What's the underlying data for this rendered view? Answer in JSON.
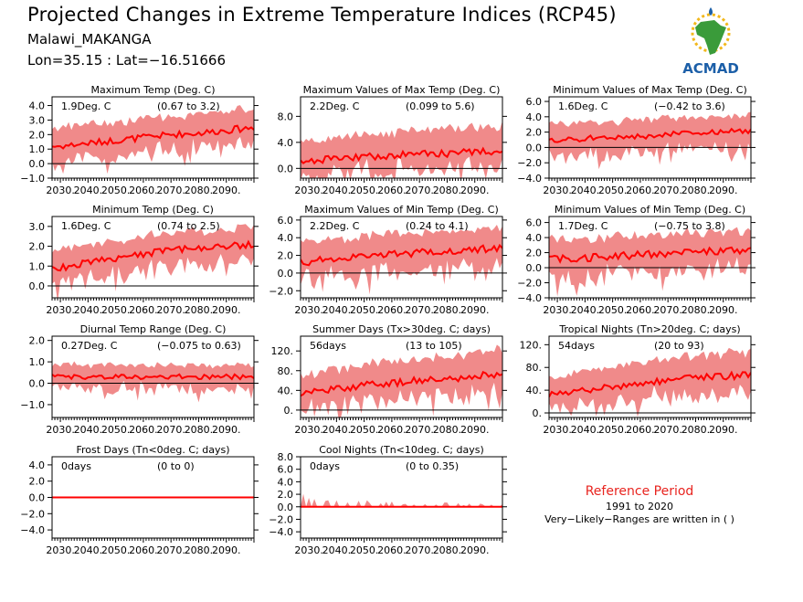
{
  "header": {
    "title": "Projected Changes in Extreme Temperature Indices (RCP45)",
    "station": "Malawi_MAKANGA",
    "coords": "Lon=35.15 : Lat=−16.51666"
  },
  "logo": {
    "text": "ACMAD"
  },
  "reference": {
    "title": "Reference Period",
    "years": "1991 to 2020",
    "note": "Very−Likely−Ranges are written in ( )"
  },
  "colors": {
    "band": "#f08a8a",
    "line": "#ff0000",
    "zero": "#000000",
    "logo_text": "#1c5fa8",
    "logo_africa": "#3a9b3a",
    "logo_sun": "#f2b81c"
  },
  "chart_data": [
    {
      "type": "area",
      "title": "Maximum Temp (Deg. C)",
      "annotation": "1.9Deg. C",
      "range": "(0.67 to 3.2)",
      "x": [
        2030,
        2040,
        2050,
        2060,
        2070,
        2080,
        2090,
        2100
      ],
      "xtick_labels": [
        "2030.",
        "2040.",
        "2050.",
        "2060.",
        "2070.",
        "2080.",
        "2090."
      ],
      "ylim": [
        -1,
        4.6
      ],
      "yticks": [
        -1,
        0,
        1,
        2,
        3,
        4
      ],
      "ytick_labels": [
        "−1.0",
        "0.0",
        "1.0",
        "2.0",
        "3.0",
        "4.0"
      ],
      "series": [
        {
          "values": [
            1.2,
            1.4,
            1.6,
            1.8,
            2.0,
            2.1,
            2.3,
            2.5
          ]
        }
      ],
      "band": {
        "lower": [
          0.2,
          0.4,
          0.6,
          0.8,
          1.0,
          1.1,
          1.3,
          1.4
        ],
        "upper": [
          2.4,
          2.6,
          2.8,
          3.0,
          3.2,
          3.3,
          3.5,
          3.7
        ]
      }
    },
    {
      "type": "area",
      "title": "Maximum Values of Max Temp (Deg. C)",
      "annotation": "2.2Deg. C",
      "range": "(0.099 to 5.6)",
      "x": [
        2030,
        2040,
        2050,
        2060,
        2070,
        2080,
        2090,
        2100
      ],
      "xtick_labels": [
        "2030.",
        "2040.",
        "2050.",
        "2060.",
        "2070.",
        "2080.",
        "2090."
      ],
      "ylim": [
        -1.5,
        11
      ],
      "yticks": [
        0,
        4,
        8
      ],
      "ytick_labels": [
        "0.0",
        "4.0",
        "8.0"
      ],
      "series": [
        {
          "values": [
            1.2,
            1.5,
            1.8,
            2.0,
            2.2,
            2.3,
            2.5,
            2.6
          ]
        }
      ],
      "band": {
        "lower": [
          -0.8,
          -0.5,
          -0.2,
          0.0,
          0.2,
          0.3,
          0.5,
          0.6
        ],
        "upper": [
          4.0,
          4.5,
          5.0,
          5.3,
          5.6,
          5.8,
          6.0,
          6.2
        ]
      }
    },
    {
      "type": "area",
      "title": "Minimum Values of Max Temp (Deg. C)",
      "annotation": "1.6Deg. C",
      "range": "(−0.42 to 3.6)",
      "x": [
        2030,
        2040,
        2050,
        2060,
        2070,
        2080,
        2090,
        2100
      ],
      "xtick_labels": [
        "2030.",
        "2040.",
        "2050.",
        "2060.",
        "2070.",
        "2080.",
        "2090."
      ],
      "ylim": [
        -4,
        6.6
      ],
      "yticks": [
        -4,
        -2,
        0,
        2,
        4,
        6
      ],
      "ytick_labels": [
        "−4.0",
        "−2.0",
        "0.0",
        "2.0",
        "4.0",
        "6.0"
      ],
      "series": [
        {
          "values": [
            0.9,
            1.1,
            1.3,
            1.5,
            1.7,
            1.9,
            2.0,
            2.1
          ]
        }
      ],
      "band": {
        "lower": [
          -1.2,
          -1.0,
          -0.8,
          -0.5,
          -0.3,
          -0.1,
          0.0,
          0.1
        ],
        "upper": [
          2.8,
          3.0,
          3.2,
          3.4,
          3.6,
          3.8,
          3.9,
          4.0
        ]
      }
    },
    {
      "type": "area",
      "title": "Minimum Temp (Deg. C)",
      "annotation": "1.6Deg. C",
      "range": "(0.74 to 2.5)",
      "x": [
        2030,
        2040,
        2050,
        2060,
        2070,
        2080,
        2090,
        2100
      ],
      "xtick_labels": [
        "2030.",
        "2040.",
        "2050.",
        "2060.",
        "2070.",
        "2080.",
        "2090."
      ],
      "ylim": [
        -0.6,
        3.5
      ],
      "yticks": [
        0,
        1,
        2,
        3
      ],
      "ytick_labels": [
        "0.0",
        "1.0",
        "2.0",
        "3.0"
      ],
      "series": [
        {
          "values": [
            0.9,
            1.2,
            1.4,
            1.6,
            1.8,
            1.9,
            2.0,
            2.1
          ]
        }
      ],
      "band": {
        "lower": [
          0.1,
          0.4,
          0.6,
          0.8,
          1.0,
          1.1,
          1.2,
          1.3
        ],
        "upper": [
          1.7,
          2.0,
          2.2,
          2.4,
          2.6,
          2.7,
          2.8,
          2.9
        ]
      }
    },
    {
      "type": "area",
      "title": "Maximum Values of Min Temp (Deg. C)",
      "annotation": "2.2Deg. C",
      "range": "(0.24 to 4.1)",
      "x": [
        2030,
        2040,
        2050,
        2060,
        2070,
        2080,
        2090,
        2100
      ],
      "xtick_labels": [
        "2030.",
        "2040.",
        "2050.",
        "2060.",
        "2070.",
        "2080.",
        "2090."
      ],
      "ylim": [
        -2.8,
        6.4
      ],
      "yticks": [
        -2,
        0,
        2,
        4,
        6
      ],
      "ytick_labels": [
        "−2.0",
        "0.0",
        "2.0",
        "4.0",
        "6.0"
      ],
      "series": [
        {
          "values": [
            1.3,
            1.6,
            1.9,
            2.1,
            2.3,
            2.5,
            2.7,
            2.8
          ]
        }
      ],
      "band": {
        "lower": [
          -0.8,
          -0.4,
          0.0,
          0.2,
          0.4,
          0.6,
          0.8,
          0.9
        ],
        "upper": [
          3.4,
          3.7,
          4.0,
          4.2,
          4.4,
          4.6,
          4.8,
          5.0
        ]
      }
    },
    {
      "type": "area",
      "title": "Minimum Values of Min Temp (Deg. C)",
      "annotation": "1.7Deg. C",
      "range": "(−0.75 to 3.8)",
      "x": [
        2030,
        2040,
        2050,
        2060,
        2070,
        2080,
        2090,
        2100
      ],
      "xtick_labels": [
        "2030.",
        "2040.",
        "2050.",
        "2060.",
        "2070.",
        "2080.",
        "2090."
      ],
      "ylim": [
        -4,
        6.8
      ],
      "yticks": [
        -4,
        -2,
        0,
        2,
        4,
        6
      ],
      "ytick_labels": [
        "−4.0",
        "−2.0",
        "0.0",
        "2.0",
        "4.0",
        "6.0"
      ],
      "series": [
        {
          "values": [
            1.1,
            1.3,
            1.5,
            1.7,
            1.9,
            2.1,
            2.2,
            2.3
          ]
        }
      ],
      "band": {
        "lower": [
          -1.5,
          -1.2,
          -0.9,
          -0.6,
          -0.4,
          -0.2,
          -0.1,
          0.0
        ],
        "upper": [
          3.5,
          3.7,
          3.9,
          4.1,
          4.3,
          4.5,
          4.6,
          4.7
        ]
      }
    },
    {
      "type": "area",
      "title": "Diurnal Temp Range (Deg. C)",
      "annotation": "0.27Deg. C",
      "range": "(−0.075 to 0.63)",
      "x": [
        2030,
        2040,
        2050,
        2060,
        2070,
        2080,
        2090,
        2100
      ],
      "xtick_labels": [
        "2030.",
        "2040.",
        "2050.",
        "2060.",
        "2070.",
        "2080.",
        "2090."
      ],
      "ylim": [
        -1.6,
        2.2
      ],
      "yticks": [
        -1,
        0,
        1,
        2
      ],
      "ytick_labels": [
        "−1.0",
        "0.0",
        "1.0",
        "2.0"
      ],
      "series": [
        {
          "values": [
            0.3,
            0.3,
            0.3,
            0.3,
            0.3,
            0.3,
            0.3,
            0.3
          ]
        }
      ],
      "band": {
        "lower": [
          -0.2,
          -0.2,
          -0.2,
          -0.2,
          -0.2,
          -0.2,
          -0.2,
          -0.2
        ],
        "upper": [
          0.8,
          0.8,
          0.8,
          0.8,
          0.8,
          0.8,
          0.8,
          0.8
        ]
      }
    },
    {
      "type": "area",
      "title": "Summer Days (Tx>30deg. C; days)",
      "annotation": "56days",
      "range": "(13 to 105)",
      "x": [
        2030,
        2040,
        2050,
        2060,
        2070,
        2080,
        2090,
        2100
      ],
      "xtick_labels": [
        "2030.",
        "2040.",
        "2050.",
        "2060.",
        "2070.",
        "2080.",
        "2090."
      ],
      "ylim": [
        -15,
        150
      ],
      "yticks": [
        0,
        40,
        80,
        120
      ],
      "ytick_labels": [
        "0.",
        "40.",
        "80.",
        "120."
      ],
      "series": [
        {
          "values": [
            35,
            43,
            50,
            55,
            60,
            64,
            68,
            72
          ]
        }
      ],
      "band": {
        "lower": [
          5,
          12,
          18,
          22,
          27,
          30,
          33,
          36
        ],
        "upper": [
          70,
          80,
          90,
          96,
          102,
          108,
          113,
          118
        ]
      }
    },
    {
      "type": "area",
      "title": "Tropical Nights (Tn>20deg. C; days)",
      "annotation": "54days",
      "range": "(20 to 93)",
      "x": [
        2030,
        2040,
        2050,
        2060,
        2070,
        2080,
        2090,
        2100
      ],
      "xtick_labels": [
        "2030.",
        "2040.",
        "2050.",
        "2060.",
        "2070.",
        "2080.",
        "2090."
      ],
      "ylim": [
        -8,
        135
      ],
      "yticks": [
        0,
        40,
        80,
        120
      ],
      "ytick_labels": [
        "0.",
        "40.",
        "80.",
        "120."
      ],
      "series": [
        {
          "values": [
            32,
            40,
            46,
            52,
            57,
            61,
            64,
            66
          ]
        }
      ],
      "band": {
        "lower": [
          10,
          16,
          22,
          27,
          31,
          34,
          37,
          39
        ],
        "upper": [
          60,
          70,
          78,
          86,
          92,
          97,
          101,
          104
        ]
      }
    },
    {
      "type": "area",
      "title": "Frost Days (Tn<0deg. C; days)",
      "annotation": "0days",
      "range": "(0 to 0)",
      "x": [
        2030,
        2040,
        2050,
        2060,
        2070,
        2080,
        2090,
        2100
      ],
      "xtick_labels": [
        "2030.",
        "2040.",
        "2050.",
        "2060.",
        "2070.",
        "2080.",
        "2090."
      ],
      "ylim": [
        -5,
        5
      ],
      "yticks": [
        -4,
        -2,
        0,
        2,
        4
      ],
      "ytick_labels": [
        "−4.0",
        "−2.0",
        "0.0",
        "2.0",
        "4.0"
      ],
      "series": [
        {
          "values": [
            0,
            0,
            0,
            0,
            0,
            0,
            0,
            0
          ]
        }
      ],
      "band": {
        "lower": [
          0,
          0,
          0,
          0,
          0,
          0,
          0,
          0
        ],
        "upper": [
          0,
          0,
          0,
          0,
          0,
          0,
          0,
          0
        ]
      }
    },
    {
      "type": "area",
      "title": "Cool Nights (Tn<10deg. C; days)",
      "annotation": "0days",
      "range": "(0 to 0.35)",
      "x": [
        2030,
        2040,
        2050,
        2060,
        2070,
        2080,
        2090,
        2100
      ],
      "xtick_labels": [
        "2030.",
        "2040.",
        "2050.",
        "2060.",
        "2070.",
        "2080.",
        "2090."
      ],
      "ylim": [
        -5,
        8
      ],
      "yticks": [
        -4,
        -2,
        0,
        2,
        4,
        6,
        8
      ],
      "ytick_labels": [
        "−4.0",
        "−2.0",
        "0.0",
        "2.0",
        "4.0",
        "6.0",
        "8.0"
      ],
      "series": [
        {
          "values": [
            0,
            0,
            0,
            0,
            0,
            0,
            0,
            0
          ]
        }
      ],
      "band": {
        "lower": [
          0,
          0,
          0,
          0,
          0,
          0,
          0,
          0
        ],
        "upper": [
          1.6,
          0.8,
          0.6,
          0.5,
          0.4,
          0.4,
          0.3,
          0.3
        ]
      }
    }
  ]
}
